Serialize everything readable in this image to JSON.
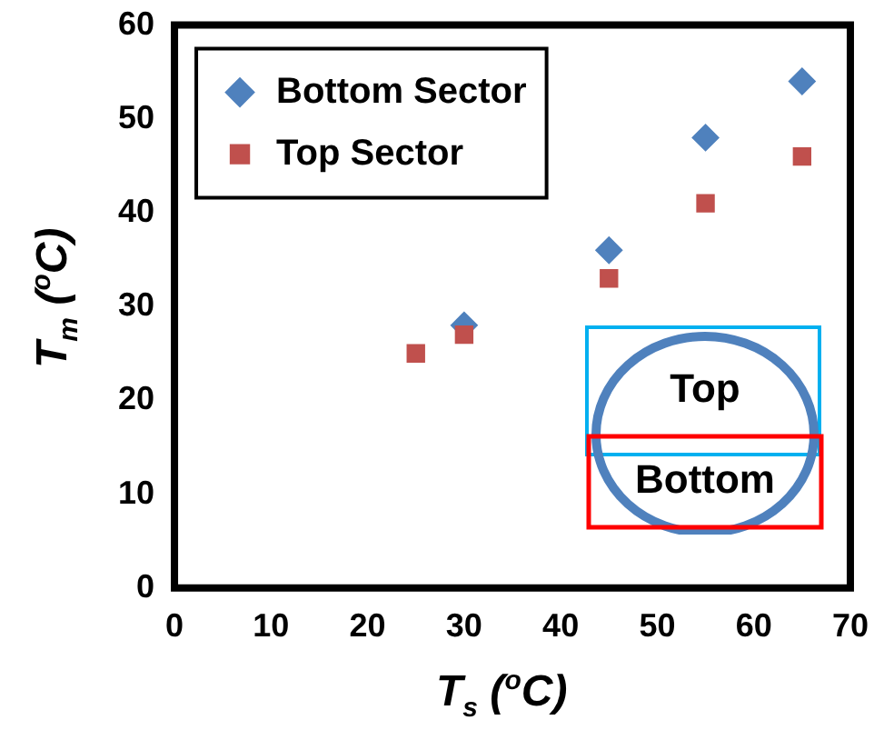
{
  "chart_data": {
    "type": "scatter",
    "xlabel": "T$_{s}$ ($^{o}$C)",
    "ylabel": "T$_{m}$ ($^{o}$C)",
    "series": [
      {
        "name": "Bottom Sector",
        "color": "#4f81bd",
        "marker": "diamond",
        "x": [
          30,
          45,
          55,
          65
        ],
        "values": [
          28,
          36,
          48,
          54
        ]
      },
      {
        "name": "Top Sector",
        "color": "#c0504d",
        "marker": "square",
        "x": [
          25,
          30,
          45,
          55,
          65
        ],
        "values": [
          25,
          27,
          33,
          41,
          46
        ]
      }
    ],
    "xlim": [
      0,
      70
    ],
    "xticks": [
      0,
      10,
      20,
      30,
      40,
      50,
      60,
      70
    ],
    "ylim": [
      0,
      60
    ],
    "yticks": [
      0,
      10,
      20,
      30,
      40,
      50,
      60
    ],
    "grid": false,
    "legend": "top left",
    "annotations": [
      "Top",
      "Bottom"
    ]
  }
}
